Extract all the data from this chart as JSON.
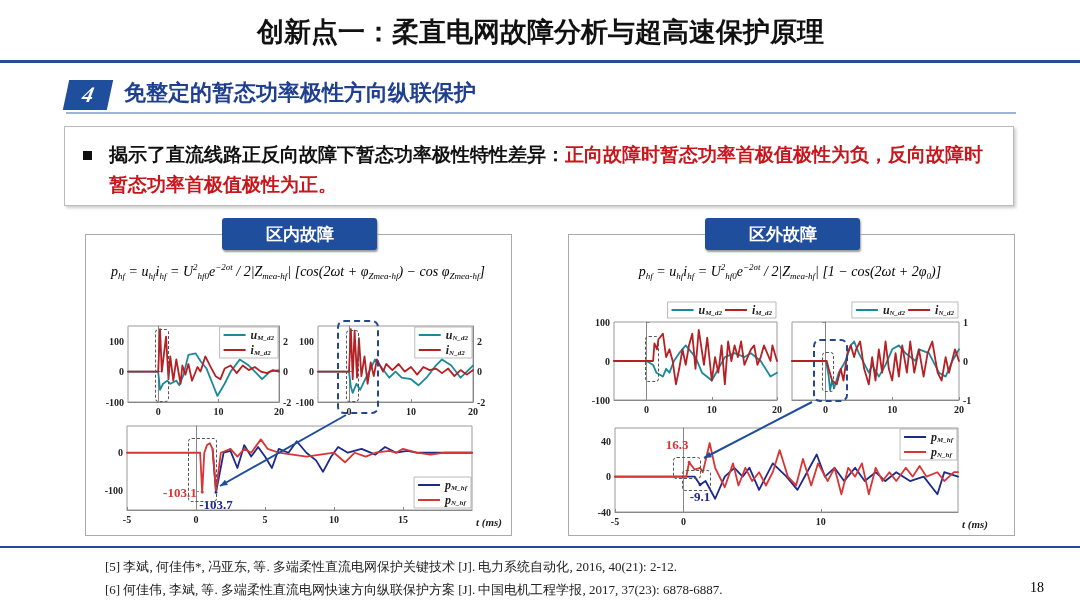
{
  "chart_data": [
    {
      "type": "other",
      "title": "创新点一：柔直电网故障分析与超高速保护原理",
      "subtitle": "免整定的暂态功率极性方向纵联保护",
      "annotations": [
        "4",
        "揭示了直流线路正反向故障下暂态功率极性特性差异：",
        "正向故障时暂态功率首极值极性为负，反向故障时暂态功率首极值极性为正。",
        "[5] 李斌, 何佳伟*, 冯亚东, 等. 多端柔性直流电网保护关键技术 [J]. 电力系统自动化, 2016, 40(21): 2-12.",
        "[6] 何佳伟, 李斌, 等. 多端柔性直流电网快速方向纵联保护方案 [J]. 中国电机工程学报, 2017, 37(23): 6878-6887.",
        "18"
      ]
    },
    {
      "type": "line",
      "title": "区内故障",
      "subtitle": "p$_{hf}$ = u$_{hf}$i$_{hf}$ = U$^{2}$$_{hf0}$e$^{−2σt}$ / 2|Z$_{mea-hf}$| [cos(2ωt + φ$_{Zmea-hf}$) − cos φ$_{Zmea-hf}$]",
      "xlim": [
        -5,
        20
      ],
      "xticks": [
        0,
        10,
        20
      ],
      "ylim": [
        -100,
        150
      ],
      "yticks": [
        -100,
        0,
        100
      ],
      "y2lim": [
        -2,
        3
      ],
      "y2ticks": [
        -2,
        0,
        2
      ],
      "legend": "top right",
      "marker": "none",
      "series": [
        {
          "name": "u$_{M_d2}$",
          "color": "#1a8a9a",
          "x": [
            -5,
            0,
            0.3,
            0.8,
            1.5,
            2,
            2.5,
            3,
            3.5,
            4.2,
            5,
            6.2,
            7,
            8,
            9,
            9.8,
            11,
            12,
            13.5,
            15,
            16.5,
            17.2,
            18.5,
            20
          ],
          "values": [
            0,
            0,
            -60,
            -40,
            -30,
            -40,
            -35,
            -30,
            -45,
            -10,
            55,
            60,
            35,
            10,
            -40,
            -80,
            -40,
            0,
            40,
            20,
            -10,
            -25,
            0,
            5
          ]
        },
        {
          "name": "i$_{M_d2}$",
          "color": "#b52025",
          "axis": "y2",
          "x": [
            -5,
            0,
            0.3,
            0.6,
            1.3,
            1.7,
            2,
            2.5,
            3,
            3.7,
            4,
            4.5,
            5,
            5.6,
            6.5,
            7,
            7.8,
            8.7,
            9.5,
            10.3,
            11,
            12,
            13,
            14,
            15,
            16,
            17,
            18,
            19,
            20
          ],
          "values": [
            0,
            0,
            2.8,
            0,
            2.3,
            -0.5,
            1,
            -0.6,
            0.8,
            -0.8,
            0.4,
            -0.2,
            0.5,
            -0.6,
            0.3,
            0,
            1,
            0.3,
            -0.3,
            -0.5,
            0.2,
            0.4,
            -0.1,
            0.4,
            0.1,
            0.3,
            0,
            -0.1,
            0.1,
            0
          ]
        }
      ]
    },
    {
      "type": "line",
      "xlim": [
        -5,
        20
      ],
      "xticks": [
        0,
        10,
        20
      ],
      "ylim": [
        -100,
        150
      ],
      "yticks": [
        -100,
        0,
        100
      ],
      "y2lim": [
        -2,
        3
      ],
      "y2ticks": [
        -2,
        0,
        2
      ],
      "legend": "top right",
      "marker": "none",
      "series": [
        {
          "name": "u$_{N_d2}$",
          "color": "#1a8a9a",
          "x": [
            -5,
            0,
            0.3,
            0.6,
            1.2,
            1.8,
            2.5,
            3.5,
            4.2,
            5,
            6.5,
            7.5,
            8.5,
            10,
            11.2,
            12.5,
            14,
            15,
            16.5,
            18,
            19,
            20
          ],
          "values": [
            0,
            0,
            -50,
            -70,
            -40,
            -60,
            -30,
            10,
            40,
            20,
            -20,
            0,
            -20,
            -25,
            -45,
            -20,
            20,
            40,
            20,
            -20,
            0,
            20
          ]
        },
        {
          "name": "i$_{N_d2}$",
          "color": "#b52025",
          "axis": "y2",
          "x": [
            -5,
            0,
            0.3,
            0.6,
            0.9,
            1.3,
            1.6,
            2,
            2.5,
            3,
            3.5,
            4,
            4.5,
            5.5,
            6,
            7,
            8,
            9,
            10,
            11,
            12,
            13,
            14,
            15,
            16,
            17,
            18,
            19,
            20
          ],
          "values": [
            0,
            0,
            2.8,
            -0.5,
            2.7,
            -0.4,
            2.2,
            -0.3,
            1,
            -0.8,
            0.6,
            -0.3,
            0.8,
            0,
            0.5,
            0.1,
            0.5,
            0,
            0.3,
            -0.2,
            0.3,
            0.1,
            0.2,
            -0.1,
            0.2,
            -0.3,
            0.1,
            -0.2,
            0.1
          ]
        }
      ]
    },
    {
      "type": "line",
      "xlabel": "t (ms)",
      "xlim": [
        -5,
        20
      ],
      "xticks": [
        -5,
        0,
        5,
        10,
        15
      ],
      "ylim": [
        -150,
        70
      ],
      "yticks": [
        -100,
        0
      ],
      "legend": "bottom right",
      "marker": "none",
      "annotations": [
        {
          "text": "-103.1",
          "x": 0.45,
          "y": -103.1
        },
        {
          "text": "-103.7",
          "x": 1.45,
          "y": -103.7
        }
      ],
      "series": [
        {
          "name": "p$_{M_hf}$",
          "color": "#1c2a8c",
          "x": [
            1.2,
            1.45,
            2,
            2.5,
            3,
            3.5,
            4,
            4.5,
            5,
            5.5,
            6,
            6.7,
            7.3,
            8,
            8.7,
            9.2,
            9.8,
            10.3,
            11,
            12,
            13,
            13.7,
            14.5,
            15.3,
            16,
            20
          ],
          "values": [
            10,
            -103.7,
            0,
            5,
            -40,
            20,
            -10,
            15,
            -10,
            -40,
            10,
            0,
            30,
            0,
            -20,
            -50,
            -10,
            15,
            0,
            10,
            -5,
            15,
            0,
            5,
            0,
            0
          ]
        },
        {
          "name": "p$_{N_hf}$",
          "color": "#d93535",
          "x": [
            -5,
            0.3,
            0.45,
            0.6,
            0.8,
            1,
            1.2,
            1.45,
            1.8,
            2.5,
            3,
            3.5,
            4,
            4.7,
            5.2,
            6,
            7,
            8,
            9,
            10,
            10.8,
            11.5,
            12.3,
            13,
            14,
            14.5,
            15,
            16,
            17,
            18,
            20
          ],
          "values": [
            0,
            0,
            -103.1,
            0,
            20,
            25,
            10,
            -100,
            0,
            10,
            -10,
            10,
            0,
            35,
            10,
            0,
            -5,
            -10,
            -5,
            0,
            -25,
            0,
            -10,
            0,
            5,
            0,
            10,
            0,
            -5,
            0,
            0
          ]
        }
      ]
    },
    {
      "type": "line",
      "title": "区外故障",
      "subtitle": "p$_{hf}$ = u$_{hf}$i$_{hf}$ = U$^{2}$$_{hf0}$e$^{−2σt}$ / 2|Z$_{mea-hf}$| [1 − cos(2ωt + 2φ$_{0}$)]",
      "xlim": [
        -5,
        20
      ],
      "xticks": [
        0,
        10,
        20
      ],
      "ylim": [
        -100,
        100
      ],
      "yticks": [
        -100,
        0,
        100
      ],
      "legend": "top right",
      "marker": "none",
      "series": [
        {
          "name": "u$_{M_d2}$",
          "color": "#1a8a9a",
          "x": [
            -5,
            0,
            1,
            1.5,
            2.5,
            3,
            3.5,
            4.2,
            5,
            6,
            6.5,
            7.5,
            8.5,
            10,
            11,
            12,
            13.5,
            15,
            16,
            17.5,
            19,
            20
          ],
          "values": [
            0,
            0,
            -10,
            -30,
            -40,
            -20,
            -30,
            0,
            20,
            40,
            30,
            10,
            -30,
            -50,
            -20,
            10,
            20,
            10,
            20,
            0,
            -40,
            -30
          ]
        },
        {
          "name": "i$_{M_d2}$",
          "color": "#b52025",
          "x": [
            -5,
            0,
            1,
            1.2,
            1.6,
            1.8,
            2.5,
            3,
            3.5,
            4,
            4.5,
            5,
            5.5,
            6,
            6.5,
            7,
            7.5,
            8,
            8.8,
            9.3,
            10,
            10.5,
            11,
            11.5,
            12,
            12.5,
            13,
            13.5,
            14,
            14.5,
            15,
            16,
            16.5,
            17,
            17.5,
            18,
            19,
            19.3,
            20
          ],
          "values": [
            0,
            0,
            0,
            45,
            30,
            55,
            70,
            10,
            30,
            0,
            -60,
            -20,
            30,
            -10,
            40,
            70,
            -20,
            80,
            -10,
            60,
            -50,
            10,
            -30,
            40,
            -60,
            50,
            0,
            40,
            10,
            50,
            -10,
            30,
            40,
            -10,
            10,
            40,
            0,
            40,
            0
          ]
        }
      ]
    },
    {
      "type": "line",
      "xlim": [
        -5,
        20
      ],
      "xticks": [
        0,
        10,
        20
      ],
      "y2lim": [
        -1,
        1
      ],
      "y2ticks": [
        -1,
        0,
        1
      ],
      "legend": "top right",
      "marker": "none",
      "series": [
        {
          "name": "u$_{N_d2}$",
          "color": "#1a8a9a",
          "axis": "y2",
          "x": [
            -5,
            0.1,
            0.5,
            0.7,
            1,
            1.3,
            2,
            3,
            3.8,
            4.3,
            5,
            6.5,
            7,
            8,
            9,
            10,
            11,
            12,
            13.5,
            14,
            15.5,
            17,
            18,
            19,
            20
          ],
          "values": [
            0,
            0,
            -0.4,
            -0.75,
            -0.5,
            -0.7,
            -0.3,
            0,
            0.4,
            0.5,
            0.2,
            -0.3,
            -0.1,
            -0.4,
            -0.1,
            0.3,
            0.4,
            0.2,
            0,
            0.3,
            0.2,
            -0.3,
            -0.4,
            0,
            0.3
          ]
        },
        {
          "name": "i$_{N_d2}$",
          "color": "#b52025",
          "axis": "y2",
          "x": [
            -5,
            0.2,
            0.5,
            1,
            1.7,
            2.3,
            2.7,
            3.3,
            3.8,
            4.3,
            4.6,
            5.2,
            5.8,
            6.5,
            7,
            7.5,
            8,
            8.5,
            9,
            9.5,
            10,
            10.5,
            11,
            11.5,
            12.2,
            12.7,
            13.3,
            14,
            14.7,
            15.3,
            16,
            16.8,
            17.4,
            18,
            18.5,
            19.4,
            20
          ],
          "values": [
            0,
            0,
            -0.2,
            -0.5,
            -0.6,
            -0.2,
            -0.5,
            0.2,
            0.4,
            0.1,
            0.3,
            0.5,
            -0.2,
            -0.6,
            0.1,
            -0.5,
            0.3,
            -0.3,
            0.5,
            -0.2,
            -0.5,
            0.2,
            -0.4,
            0.4,
            -0.3,
            0.5,
            -0.3,
            0.3,
            -0.4,
            0.2,
            0.5,
            -0.3,
            -0.5,
            0.1,
            -0.3,
            0.3,
            0
          ]
        }
      ]
    },
    {
      "type": "line",
      "xlabel": "t (ms)",
      "xlim": [
        -5,
        20
      ],
      "xticks": [
        -5,
        0,
        10
      ],
      "ylim": [
        -40,
        55
      ],
      "yticks": [
        -40,
        0,
        40
      ],
      "legend": "top right",
      "marker": "none",
      "annotations": [
        {
          "text": "16.3",
          "x": 0.4,
          "y": 16.3
        },
        {
          "text": "-9.1",
          "x": 1.2,
          "y": -9.1
        }
      ],
      "series": [
        {
          "name": "p$_{M_hf}$",
          "color": "#1c2a8c",
          "x": [
            -5,
            0.3,
            0.8,
            1.2,
            1.6,
            2.3,
            3,
            3.7,
            4.3,
            4.8,
            5.5,
            6,
            6.5,
            7.5,
            8.3,
            9,
            9.7,
            10.3,
            11,
            11.7,
            12.5,
            13.2,
            14,
            14.7,
            15.5,
            16.5,
            17.5,
            18.5,
            19,
            20
          ],
          "values": [
            0,
            0,
            0,
            -9.1,
            -5,
            -25,
            0,
            10,
            0,
            10,
            -15,
            0,
            15,
            0,
            -15,
            5,
            25,
            0,
            10,
            -5,
            10,
            -5,
            5,
            -5,
            5,
            -5,
            0,
            -20,
            5,
            0
          ]
        },
        {
          "name": "p$_{N_hf}$",
          "color": "#d93535",
          "x": [
            -5,
            0.2,
            0.4,
            0.8,
            1.2,
            1.4,
            1.9,
            2.3,
            3,
            3.6,
            4,
            4.5,
            5,
            5.5,
            6,
            6.5,
            7,
            7.6,
            8.2,
            8.7,
            9.3,
            9.8,
            10.5,
            11,
            11.5,
            12,
            12.5,
            13,
            13.5,
            14,
            14.5,
            15,
            15.5,
            16.2,
            16.7,
            17.2,
            17.7,
            18.5,
            19,
            19.7,
            20
          ],
          "values": [
            0,
            0,
            16.3,
            8,
            10,
            5,
            38,
            10,
            -12,
            15,
            -10,
            10,
            -5,
            5,
            -10,
            5,
            30,
            0,
            -10,
            20,
            -10,
            15,
            -5,
            10,
            -20,
            10,
            0,
            15,
            -20,
            10,
            -5,
            5,
            -5,
            10,
            0,
            12,
            0,
            5,
            -5,
            5,
            5
          ]
        }
      ]
    }
  ]
}
